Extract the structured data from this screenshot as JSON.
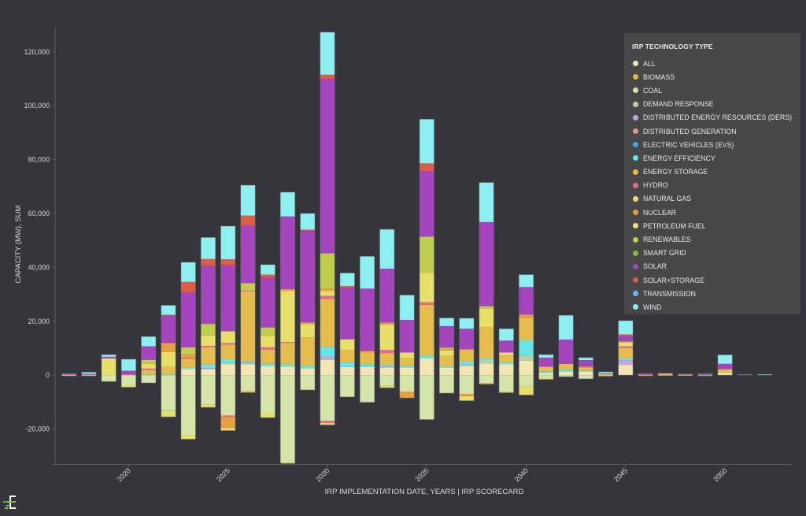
{
  "chart_data": {
    "type": "bar",
    "stacked": true,
    "title": "",
    "xlabel": "IRP IMPLEMENTATION DATE, YEARS | IRP SCORECARD",
    "ylabel": "CAPACITY (MW), SUM",
    "ylim": [
      -33000,
      129000
    ],
    "xlim": [
      2016.3,
      2053.4
    ],
    "yticks": [
      -20000,
      0,
      20000,
      40000,
      60000,
      80000,
      100000,
      120000
    ],
    "ytick_labels": [
      "-20,000",
      "0",
      "20,000",
      "40,000",
      "60,000",
      "80,000",
      "100,000",
      "120,000"
    ],
    "xticks": [
      2020,
      2025,
      2030,
      2035,
      2040,
      2045,
      2050
    ],
    "xtick_labels": [
      "2020",
      "2025",
      "2030",
      "2035",
      "2040",
      "2045",
      "2050"
    ],
    "grid": false,
    "legend": {
      "title": "IRP TECHNOLOGY TYPE",
      "placement": "top-right",
      "entries": [
        {
          "key": "all",
          "label": "ALL",
          "color": "#f2e6b5"
        },
        {
          "key": "biomass",
          "label": "BIOMASS",
          "color": "#e3b946"
        },
        {
          "key": "coal",
          "label": "COAL",
          "color": "#d5e4a9"
        },
        {
          "key": "demand_response",
          "label": "DEMAND RESPONSE",
          "color": "#b9d4a4"
        },
        {
          "key": "ders",
          "label": "DISTRIBUTED ENERGY RESOURCES (DERS)",
          "color": "#c9a2e4"
        },
        {
          "key": "dist_gen",
          "label": "DISTRIBUTED GENERATION",
          "color": "#e8908e"
        },
        {
          "key": "evs",
          "label": "ELECTRIC VEHICLES (EVS)",
          "color": "#4a9ee3"
        },
        {
          "key": "energy_efficiency",
          "label": "ENERGY EFFICIENCY",
          "color": "#66e6e6"
        },
        {
          "key": "energy_storage",
          "label": "ENERGY STORAGE",
          "color": "#e5bd4f"
        },
        {
          "key": "hydro",
          "label": "HYDRO",
          "color": "#e76a96"
        },
        {
          "key": "natural_gas",
          "label": "NATURAL GAS",
          "color": "#e8de6a"
        },
        {
          "key": "nuclear",
          "label": "NUCLEAR",
          "color": "#e79e3e"
        },
        {
          "key": "petroleum_fuel",
          "label": "PETROLEUM FUEL",
          "color": "#ece37a"
        },
        {
          "key": "renewables",
          "label": "RENEWABLES",
          "color": "#c0cd4e"
        },
        {
          "key": "smart_grid",
          "label": "SMART GRID",
          "color": "#86b84a"
        },
        {
          "key": "solar",
          "label": "SOLAR",
          "color": "#a545be"
        },
        {
          "key": "solar_storage",
          "label": "SOLAR+STORAGE",
          "color": "#dd5d45"
        },
        {
          "key": "transmission",
          "label": "TRANSMISSION",
          "color": "#6cb7ef"
        },
        {
          "key": "wind",
          "label": "WIND",
          "color": "#8eeff0"
        }
      ]
    },
    "series_order_positive": [
      "all",
      "coal",
      "demand_response",
      "ders",
      "evs",
      "energy_efficiency",
      "biomass",
      "energy_storage",
      "hydro",
      "dist_gen",
      "natural_gas",
      "nuclear",
      "petroleum_fuel",
      "renewables",
      "smart_grid",
      "solar",
      "solar_storage",
      "transmission",
      "wind"
    ],
    "series_order_negative": [
      "coal",
      "demand_response",
      "hydro",
      "nuclear",
      "natural_gas",
      "petroleum_fuel"
    ],
    "years": [
      {
        "year": 2017,
        "pos": {
          "hydro": 200,
          "solar": 400
        },
        "neg": {
          "coal": -300
        }
      },
      {
        "year": 2018,
        "pos": {
          "solar": 300,
          "hydro": 200,
          "wind": 600
        },
        "neg": {
          "coal": -300
        }
      },
      {
        "year": 2019,
        "pos": {
          "natural_gas": 6200,
          "solar": 600,
          "wind": 800
        },
        "neg": {
          "coal": -2400
        }
      },
      {
        "year": 2020,
        "pos": {
          "hydro": 300,
          "solar": 1300,
          "wind": 4300
        },
        "neg": {
          "coal": -3600,
          "natural_gas": -900
        }
      },
      {
        "year": 2021,
        "pos": {
          "energy_efficiency": 300,
          "energy_storage": 1600,
          "hydro": 500,
          "natural_gas": 1800,
          "renewables": 1500,
          "solar": 5000,
          "wind": 3600
        },
        "neg": {
          "coal": -2900
        }
      },
      {
        "year": 2022,
        "pos": {
          "energy_efficiency": 300,
          "energy_storage": 2800,
          "natural_gas": 5500,
          "nuclear": 3300,
          "solar": 10200,
          "solar_storage": 300,
          "wind": 3500
        },
        "neg": {
          "coal": -13000,
          "demand_response": -400,
          "natural_gas": -2100
        }
      },
      {
        "year": 2023,
        "pos": {
          "all": 2300,
          "energy_efficiency": 500,
          "energy_storage": 3300,
          "hydro": 300,
          "nuclear": 1200,
          "renewables": 2700,
          "solar": 20500,
          "solar_storage": 3800,
          "wind": 7300
        },
        "neg": {
          "coal": -22300,
          "natural_gas": -1500
        }
      },
      {
        "year": 2024,
        "pos": {
          "all": 2200,
          "ders": 400,
          "energy_efficiency": 1300,
          "energy_storage": 6400,
          "hydro": 500,
          "natural_gas": 3900,
          "renewables": 4300,
          "solar": 21600,
          "solar_storage": 2500,
          "wind": 8000
        },
        "neg": {
          "coal": -11000,
          "natural_gas": -1000
        }
      },
      {
        "year": 2025,
        "pos": {
          "all": 4000,
          "demand_response": 500,
          "energy_efficiency": 1400,
          "energy_storage": 5500,
          "hydro": 500,
          "natural_gas": 4400,
          "solar": 24500,
          "solar_storage": 2200,
          "wind": 12300
        },
        "neg": {
          "coal": -15000,
          "hydro": -400,
          "nuclear": -4300,
          "natural_gas": -900
        }
      },
      {
        "year": 2026,
        "pos": {
          "all": 4100,
          "ders": 400,
          "energy_efficiency": 600,
          "energy_storage": 26000,
          "hydro": 300,
          "natural_gas": 400,
          "renewables": 2300,
          "solar": 21500,
          "solar_storage": 3600,
          "wind": 11300
        },
        "neg": {
          "coal": -5800,
          "energy_storage": -700
        }
      },
      {
        "year": 2027,
        "pos": {
          "all": 3300,
          "energy_efficiency": 900,
          "energy_storage": 5200,
          "hydro": 900,
          "natural_gas": 4200,
          "renewables": 3200,
          "solar": 18400,
          "solar_storage": 1200,
          "wind": 3700
        },
        "neg": {
          "coal": -14000,
          "natural_gas": -1800
        }
      },
      {
        "year": 2028,
        "pos": {
          "all": 3100,
          "energy_efficiency": 900,
          "energy_storage": 8000,
          "hydro": 300,
          "natural_gas": 19000,
          "nuclear": 600,
          "solar": 27000,
          "wind": 9000
        },
        "neg": {
          "coal": -32500,
          "natural_gas": -300
        }
      },
      {
        "year": 2029,
        "pos": {
          "all": 2600,
          "energy_efficiency": 900,
          "energy_storage": 10500,
          "natural_gas": 5000,
          "nuclear": 600,
          "solar": 34000,
          "solar_storage": 400,
          "wind": 6000
        },
        "neg": {
          "coal": -5500
        }
      },
      {
        "year": 2030,
        "pos": {
          "all": 5700,
          "ders": 900,
          "demand_response": 300,
          "energy_efficiency": 3600,
          "energy_storage": 17800,
          "hydro": 1100,
          "natural_gas": 1900,
          "nuclear": 800,
          "renewables": 13100,
          "solar": 64700,
          "solar_storage": 1600,
          "wind": 15800
        },
        "neg": {
          "coal": -17000,
          "hydro": -800,
          "natural_gas": -700
        }
      },
      {
        "year": 2031,
        "pos": {
          "all": 3000,
          "energy_efficiency": 1700,
          "energy_storage": 4700,
          "natural_gas": 3900,
          "solar": 19100,
          "solar_storage": 700,
          "wind": 4800
        },
        "neg": {
          "coal": -8100
        }
      },
      {
        "year": 2032,
        "pos": {
          "all": 3000,
          "energy_efficiency": 1100,
          "energy_storage": 4400,
          "nuclear": 500,
          "solar": 23100,
          "wind": 12000
        },
        "neg": {
          "coal": -10100
        }
      },
      {
        "year": 2033,
        "pos": {
          "all": 2900,
          "ders": 300,
          "energy_efficiency": 600,
          "energy_storage": 4400,
          "hydro": 1200,
          "natural_gas": 9400,
          "nuclear": 700,
          "solar": 20000,
          "wind": 14600
        },
        "neg": {
          "coal": -3800,
          "natural_gas": -900
        }
      },
      {
        "year": 2034,
        "pos": {
          "all": 2900,
          "energy_efficiency": 600,
          "energy_storage": 2800,
          "natural_gas": 2100,
          "solar": 12100,
          "wind": 9200
        },
        "neg": {
          "coal": -6100,
          "nuclear": -2400
        }
      },
      {
        "year": 2035,
        "pos": {
          "all": 6200,
          "energy_efficiency": 1000,
          "energy_storage": 18900,
          "hydro": 900,
          "natural_gas": 10900,
          "renewables": 13500,
          "solar": 24300,
          "solar_storage": 2900,
          "wind": 16400
        },
        "neg": {
          "coal": -16500
        }
      },
      {
        "year": 2036,
        "pos": {
          "all": 2800,
          "energy_efficiency": 500,
          "energy_storage": 3800,
          "nuclear": 500,
          "natural_gas": 2100,
          "renewables": 500,
          "solar": 8000,
          "wind": 3000
        },
        "neg": {
          "coal": -6700
        }
      },
      {
        "year": 2037,
        "pos": {
          "all": 3500,
          "ders": 300,
          "energy_efficiency": 1200,
          "energy_storage": 4600,
          "solar": 7600,
          "wind": 3900
        },
        "neg": {
          "coal": -7000,
          "natural_gas": -1700,
          "nuclear": -800
        }
      },
      {
        "year": 2038,
        "pos": {
          "all": 4300,
          "demand_response": 1300,
          "energy_efficiency": 600,
          "energy_storage": 11700,
          "natural_gas": 6800,
          "renewables": 900,
          "solar": 31200,
          "wind": 14700
        },
        "neg": {
          "coal": -3100,
          "nuclear": -300
        }
      },
      {
        "year": 2039,
        "pos": {
          "all": 4000,
          "energy_efficiency": 700,
          "energy_storage": 2800,
          "natural_gas": 900,
          "solar": 4400,
          "wind": 4400
        },
        "neg": {
          "coal": -6300,
          "nuclear": -300
        }
      },
      {
        "year": 2040,
        "pos": {
          "all": 5400,
          "demand_response": 1900,
          "energy_efficiency": 5600,
          "energy_storage": 8200,
          "nuclear": 1400,
          "solar": 10200,
          "wind": 4600
        },
        "neg": {
          "coal": -4300,
          "natural_gas": -3100
        }
      },
      {
        "year": 2041,
        "pos": {
          "all": 800,
          "energy_efficiency": 500,
          "energy_storage": 1800,
          "solar": 3400,
          "wind": 1100
        },
        "neg": {
          "coal": -1000,
          "natural_gas": -600
        }
      },
      {
        "year": 2042,
        "pos": {
          "all": 1200,
          "energy_efficiency": 800,
          "energy_storage": 2200,
          "solar": 9000,
          "wind": 9000
        },
        "neg": {
          "coal": -600
        }
      },
      {
        "year": 2043,
        "pos": {
          "all": 1400,
          "energy_efficiency": 300,
          "energy_storage": 1200,
          "nuclear": 300,
          "solar": 2400,
          "wind": 900
        },
        "neg": {
          "coal": -1400
        }
      },
      {
        "year": 2044,
        "pos": {
          "energy_storage": 400,
          "solar": 200,
          "wind": 600
        },
        "neg": {
          "natural_gas": -400
        }
      },
      {
        "year": 2045,
        "pos": {
          "all": 3800,
          "ders": 1700,
          "energy_efficiency": 700,
          "energy_storage": 3900,
          "hydro": 600,
          "natural_gas": 1400,
          "renewables": 400,
          "solar": 2200,
          "solar_storage": 400,
          "wind": 5100
        },
        "neg": {}
      },
      {
        "year": 2046,
        "pos": {
          "solar": 400,
          "hydro": 200
        },
        "neg": {
          "energy_storage": -300
        }
      },
      {
        "year": 2047,
        "pos": {
          "energy_storage": 500,
          "hydro": 200
        },
        "neg": {
          "coal": -100
        }
      },
      {
        "year": 2048,
        "pos": {
          "solar": 200,
          "energy_storage": 200
        },
        "neg": {
          "coal": -200
        }
      },
      {
        "year": 2049,
        "pos": {
          "solar": 300,
          "transmission": 200
        },
        "neg": {
          "energy_storage": -300
        }
      },
      {
        "year": 2050,
        "pos": {
          "all": 800,
          "energy_storage": 1400,
          "solar": 2000,
          "wind": 3300
        },
        "neg": {}
      },
      {
        "year": 2051,
        "pos": {
          "solar": 300
        },
        "neg": {}
      },
      {
        "year": 2052,
        "pos": {
          "energy_efficiency": 300
        },
        "neg": {}
      }
    ]
  },
  "logo": {
    "name": "app-logo"
  }
}
